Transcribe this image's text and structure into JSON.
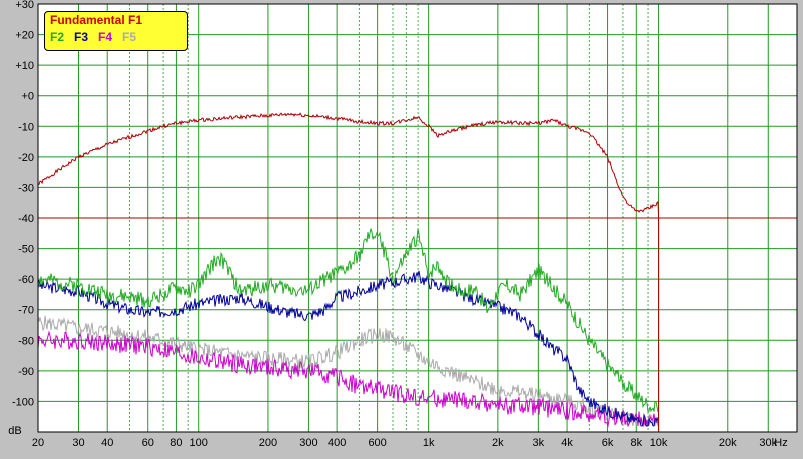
{
  "chart_data": {
    "type": "line",
    "title": "",
    "xlabel": "Hz",
    "ylabel": "dB",
    "x_scale": "log",
    "xlim": [
      20,
      40000
    ],
    "ylim": [
      -110,
      30
    ],
    "x_ticks": [
      20,
      30,
      40,
      60,
      80,
      100,
      200,
      300,
      400,
      600,
      1000,
      2000,
      3000,
      4000,
      6000,
      8000,
      10000,
      20000,
      30000
    ],
    "x_tick_labels": [
      "20",
      "30",
      "40",
      "60",
      "80",
      "100",
      "200",
      "300",
      "400",
      "600",
      "1k",
      "2k",
      "3k",
      "4k",
      "6k",
      "8k",
      "10k",
      "20k",
      "30k"
    ],
    "y_ticks": [
      30,
      20,
      10,
      0,
      -10,
      -20,
      -30,
      -40,
      -50,
      -60,
      -70,
      -80,
      -90,
      -100
    ],
    "y_tick_labels": [
      "+30",
      "+20",
      "+10",
      "+0",
      "-10",
      "-20",
      "-30",
      "-40",
      "-50",
      "-60",
      "-70",
      "-80",
      "-90",
      "-100"
    ],
    "grid": true,
    "background": "#ffffff",
    "legend": {
      "position": "top-left",
      "title": "Fundamental F1",
      "title_color": "#cc0000",
      "entries": [
        {
          "label": "F2",
          "color": "#22aa22"
        },
        {
          "label": "F3",
          "color": "#000099"
        },
        {
          "label": "F4",
          "color": "#cc00cc"
        },
        {
          "label": "F5",
          "color": "#aaaaaa"
        }
      ],
      "background": "#ffff33"
    },
    "reference_line": {
      "y": -40,
      "color": "#aa0000"
    },
    "series": [
      {
        "name": "Fundamental F1",
        "color": "#aa0000",
        "noise": 0.6,
        "seed": 1,
        "x": [
          20,
          25,
          30,
          40,
          50,
          60,
          70,
          80,
          100,
          150,
          200,
          250,
          300,
          350,
          400,
          450,
          500,
          600,
          700,
          800,
          900,
          1000,
          1100,
          1200,
          1500,
          2000,
          2500,
          3000,
          3500,
          4000,
          5000,
          6000,
          6500,
          7000,
          7500,
          8000,
          9000,
          10000
        ],
        "y": [
          -29,
          -24,
          -20,
          -16,
          -13.5,
          -11.5,
          -10,
          -9,
          -8,
          -7,
          -6.5,
          -6,
          -6.5,
          -7,
          -7.5,
          -8,
          -8.5,
          -9,
          -9,
          -8,
          -7,
          -10,
          -13,
          -12,
          -10,
          -8.5,
          -9,
          -9,
          -8,
          -10,
          -12,
          -20,
          -27,
          -33,
          -36,
          -38,
          -37,
          -35
        ]
      },
      {
        "name": "F2",
        "color": "#22aa22",
        "noise": 2.5,
        "seed": 2,
        "x": [
          20,
          30,
          40,
          50,
          60,
          80,
          90,
          100,
          120,
          130,
          150,
          200,
          250,
          300,
          350,
          400,
          450,
          500,
          550,
          600,
          650,
          700,
          800,
          900,
          1000,
          1100,
          1200,
          1400,
          1600,
          1800,
          2000,
          2200,
          2500,
          3000,
          3500,
          4000,
          5000,
          6000,
          7000,
          8000,
          9000,
          10000
        ],
        "y": [
          -60,
          -62,
          -65,
          -66,
          -67,
          -63,
          -64,
          -62,
          -53,
          -55,
          -64,
          -62,
          -63,
          -64,
          -60,
          -58,
          -56,
          -52,
          -46,
          -45,
          -52,
          -60,
          -52,
          -46,
          -58,
          -55,
          -61,
          -64,
          -63,
          -70,
          -64,
          -62,
          -65,
          -57,
          -63,
          -68,
          -80,
          -88,
          -94,
          -98,
          -101,
          -103
        ]
      },
      {
        "name": "F3",
        "color": "#000099",
        "noise": 2.0,
        "seed": 3,
        "x": [
          20,
          30,
          40,
          50,
          60,
          80,
          100,
          120,
          150,
          200,
          250,
          300,
          350,
          400,
          500,
          600,
          700,
          800,
          900,
          1000,
          1200,
          1500,
          2000,
          2500,
          3000,
          3500,
          4000,
          4500,
          5000,
          6000,
          7000,
          8000,
          10000
        ],
        "y": [
          -62,
          -64,
          -68,
          -70,
          -71,
          -70,
          -68,
          -67,
          -66,
          -69,
          -71,
          -72,
          -70,
          -66,
          -64,
          -62,
          -61,
          -60,
          -59,
          -61,
          -63,
          -66,
          -69,
          -72,
          -78,
          -83,
          -86,
          -96,
          -100,
          -103,
          -105,
          -106,
          -107
        ]
      },
      {
        "name": "F4",
        "color": "#cc00cc",
        "noise": 3.0,
        "seed": 4,
        "x": [
          20,
          30,
          40,
          60,
          80,
          100,
          150,
          200,
          300,
          400,
          500,
          600,
          700,
          800,
          1000,
          1500,
          2000,
          3000,
          4000,
          5000,
          6000,
          8000,
          10000
        ],
        "y": [
          -80,
          -80,
          -81,
          -82,
          -84,
          -86,
          -88,
          -89,
          -90,
          -92,
          -95,
          -96,
          -97,
          -98,
          -99,
          -100,
          -101,
          -102,
          -103,
          -104,
          -105,
          -106,
          -107
        ]
      },
      {
        "name": "F5",
        "color": "#aaaaaa",
        "noise": 2.5,
        "seed": 5,
        "x": [
          20,
          30,
          40,
          60,
          80,
          100,
          150,
          200,
          300,
          400,
          500,
          600,
          700,
          800,
          1000,
          1500,
          2000,
          3000,
          4000,
          5000,
          6000,
          8000,
          10000
        ],
        "y": [
          -74,
          -76,
          -77,
          -79,
          -81,
          -83,
          -85,
          -86,
          -87,
          -84,
          -80,
          -78,
          -79,
          -82,
          -87,
          -93,
          -96,
          -98,
          -100,
          -102,
          -104,
          -106,
          -107
        ]
      }
    ]
  }
}
